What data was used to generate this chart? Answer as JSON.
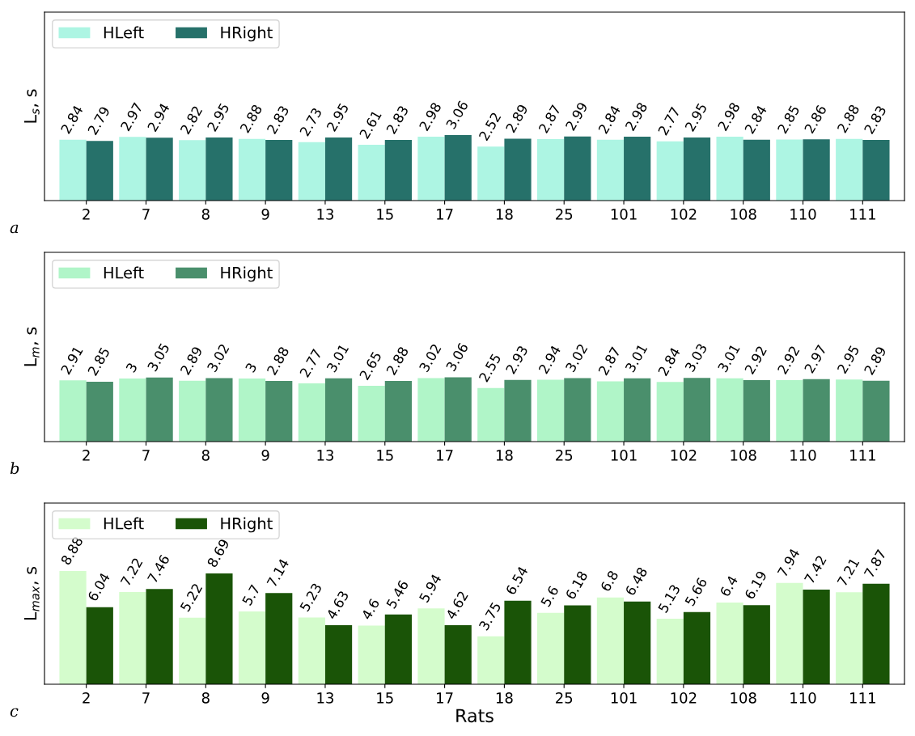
{
  "chart_data": [
    {
      "type": "bar",
      "ylabel": "L$_{s}$, s",
      "categories": [
        "2",
        "7",
        "8",
        "9",
        "13",
        "15",
        "17",
        "18",
        "25",
        "101",
        "102",
        "108",
        "110",
        "111"
      ],
      "ylim": [
        0,
        8.8
      ],
      "tick_labels": "x",
      "data_labels": true,
      "legend": "top left",
      "annotations": [
        "a"
      ],
      "series": [
        {
          "name": "HLeft",
          "color": "#adf5e3",
          "values": [
            2.84,
            2.97,
            2.82,
            2.88,
            2.73,
            2.61,
            2.98,
            2.52,
            2.87,
            2.84,
            2.77,
            2.98,
            2.85,
            2.88
          ]
        },
        {
          "name": "HRight",
          "color": "#26716a",
          "values": [
            2.79,
            2.94,
            2.95,
            2.83,
            2.95,
            2.83,
            3.06,
            2.89,
            2.99,
            2.98,
            2.95,
            2.84,
            2.86,
            2.83
          ]
        }
      ]
    },
    {
      "type": "bar",
      "ylabel": "L$_{m}$, s",
      "categories": [
        "2",
        "7",
        "8",
        "9",
        "13",
        "15",
        "17",
        "18",
        "25",
        "101",
        "102",
        "108",
        "110",
        "111"
      ],
      "ylim": [
        0,
        9.0
      ],
      "tick_labels": "x",
      "data_labels": true,
      "legend": "top left",
      "annotations": [
        "b"
      ],
      "series": [
        {
          "name": "HLeft",
          "color": "#b0f5c8",
          "values": [
            2.91,
            3,
            2.89,
            3,
            2.77,
            2.65,
            3.02,
            2.55,
            2.94,
            2.87,
            2.84,
            3.01,
            2.92,
            2.95
          ]
        },
        {
          "name": "HRight",
          "color": "#4a8f6c",
          "values": [
            2.85,
            3.05,
            3.02,
            2.88,
            3.01,
            2.88,
            3.06,
            2.93,
            3.02,
            3.01,
            3.03,
            2.92,
            2.97,
            2.89
          ]
        }
      ]
    },
    {
      "type": "bar",
      "ylabel": "L$_{max}$, s",
      "xlabel": "Rats",
      "categories": [
        "2",
        "7",
        "8",
        "9",
        "13",
        "15",
        "17",
        "18",
        "25",
        "101",
        "102",
        "108",
        "110",
        "111"
      ],
      "ylim": [
        0,
        14.2
      ],
      "tick_labels": "x",
      "data_labels": true,
      "legend": "top left",
      "annotations": [
        "c"
      ],
      "series": [
        {
          "name": "HLeft",
          "color": "#d4fccc",
          "values": [
            8.88,
            7.22,
            5.22,
            5.7,
            5.23,
            4.6,
            5.94,
            3.75,
            5.6,
            6.8,
            5.13,
            6.4,
            7.94,
            7.21
          ]
        },
        {
          "name": "HRight",
          "color": "#1a5407",
          "values": [
            6.04,
            7.46,
            8.69,
            7.14,
            4.63,
            5.46,
            4.62,
            6.54,
            6.18,
            6.48,
            5.66,
            6.19,
            7.42,
            7.87
          ]
        }
      ]
    }
  ]
}
